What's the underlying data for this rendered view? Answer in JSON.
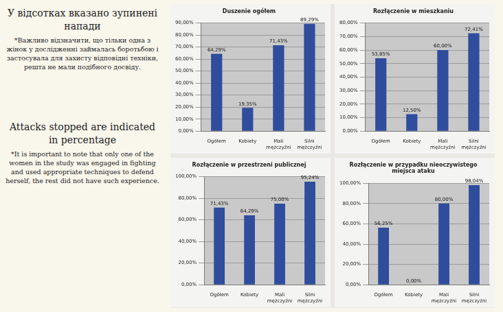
{
  "text_panel": {
    "uk_heading": "У відсотках вказано зупинені напади",
    "uk_note": "*Важливо відзначити, що тільки одна з жінок у дослідженні займалась боротьбою і застосувала для захисту відповідні техніки, решта не мали подібного досвіду.",
    "en_heading": "Attacks stopped are indicated in percentage",
    "en_note": "*It is important to note that only one of the women in the study was engaged in fighting and used appropriate techniques to defend herself, the rest did not have such experience."
  },
  "chart_data": [
    {
      "type": "bar",
      "title": "Duszenie ogółem",
      "categories": [
        "Ogółem",
        "Kobiety",
        "Mali mężczyźni",
        "Silni mężczyźni"
      ],
      "values": [
        64.29,
        19.35,
        71.43,
        89.29
      ],
      "value_labels": [
        "64,29%",
        "19,35%",
        "71,43%",
        "89,29%"
      ],
      "color": "#2f4d9c",
      "ylim": [
        0,
        90
      ],
      "yticks": [
        {
          "value": 0,
          "label": "0,00%"
        },
        {
          "value": 10,
          "label": "10,00%"
        },
        {
          "value": 20,
          "label": "20,00%"
        },
        {
          "value": 30,
          "label": "30,00%"
        },
        {
          "value": 40,
          "label": "40,00%"
        },
        {
          "value": 50,
          "label": "50,00%"
        },
        {
          "value": 60,
          "label": "60,00%"
        },
        {
          "value": 70,
          "label": "70,00%"
        },
        {
          "value": 80,
          "label": "80,00%"
        },
        {
          "value": 90,
          "label": "90,00%"
        }
      ],
      "grid": true,
      "data_labels": true
    },
    {
      "type": "bar",
      "title": "Rozłączenie w mieszkaniu",
      "categories": [
        "Ogółem",
        "Kobiety",
        "Mali mężczyźni",
        "Silni mężczyźni"
      ],
      "values": [
        53.85,
        12.5,
        60,
        72.41
      ],
      "value_labels": [
        "53,85%",
        "12,50%",
        "60,00%",
        "72,41%"
      ],
      "color": "#2f4d9c",
      "ylim": [
        0,
        80
      ],
      "yticks": [
        {
          "value": 0,
          "label": "0,00%"
        },
        {
          "value": 10,
          "label": "10,00%"
        },
        {
          "value": 20,
          "label": "20,00%"
        },
        {
          "value": 30,
          "label": "30,00%"
        },
        {
          "value": 40,
          "label": "40,00%"
        },
        {
          "value": 50,
          "label": "50,00%"
        },
        {
          "value": 60,
          "label": "60,00%"
        },
        {
          "value": 70,
          "label": "70,00%"
        },
        {
          "value": 80,
          "label": "80,00%"
        }
      ],
      "grid": true,
      "data_labels": true
    },
    {
      "type": "bar",
      "title": "Rozłączenie w przestrzeni publicznej",
      "categories": [
        "Ogółem",
        "Kobiety",
        "Mali mężczyźni",
        "Silni mężczyźni"
      ],
      "values": [
        71.43,
        64.29,
        75,
        95.24
      ],
      "value_labels": [
        "71,43%",
        "64,29%",
        "75,00%",
        "95,24%"
      ],
      "color": "#2f4d9c",
      "ylim": [
        0,
        100
      ],
      "yticks": [
        {
          "value": 0,
          "label": "0,00%"
        },
        {
          "value": 20,
          "label": "20,00%"
        },
        {
          "value": 40,
          "label": "40,00%"
        },
        {
          "value": 60,
          "label": "60,00%"
        },
        {
          "value": 80,
          "label": "80,00%"
        },
        {
          "value": 100,
          "label": "100,00%"
        }
      ],
      "grid": true,
      "data_labels": true
    },
    {
      "type": "bar",
      "title": "Rozłączenie w przypadku nieoczywistego miejsca ataku",
      "categories": [
        "Ogółem",
        "Kobiety",
        "Mali mężczyźni",
        "Silni mężczyźni"
      ],
      "values": [
        56.25,
        0,
        80,
        98.04
      ],
      "value_labels": [
        "56,25%",
        "0,00%",
        "80,00%",
        "98,04%"
      ],
      "color": "#2f4d9c",
      "ylim": [
        0,
        100
      ],
      "yticks": [
        {
          "value": 0,
          "label": "0,00%"
        },
        {
          "value": 20,
          "label": "20,00%"
        },
        {
          "value": 40,
          "label": "40,00%"
        },
        {
          "value": 60,
          "label": "60,00%"
        },
        {
          "value": 80,
          "label": "80,00%"
        },
        {
          "value": 100,
          "label": "100,00%"
        }
      ],
      "grid": true,
      "data_labels": true
    }
  ]
}
